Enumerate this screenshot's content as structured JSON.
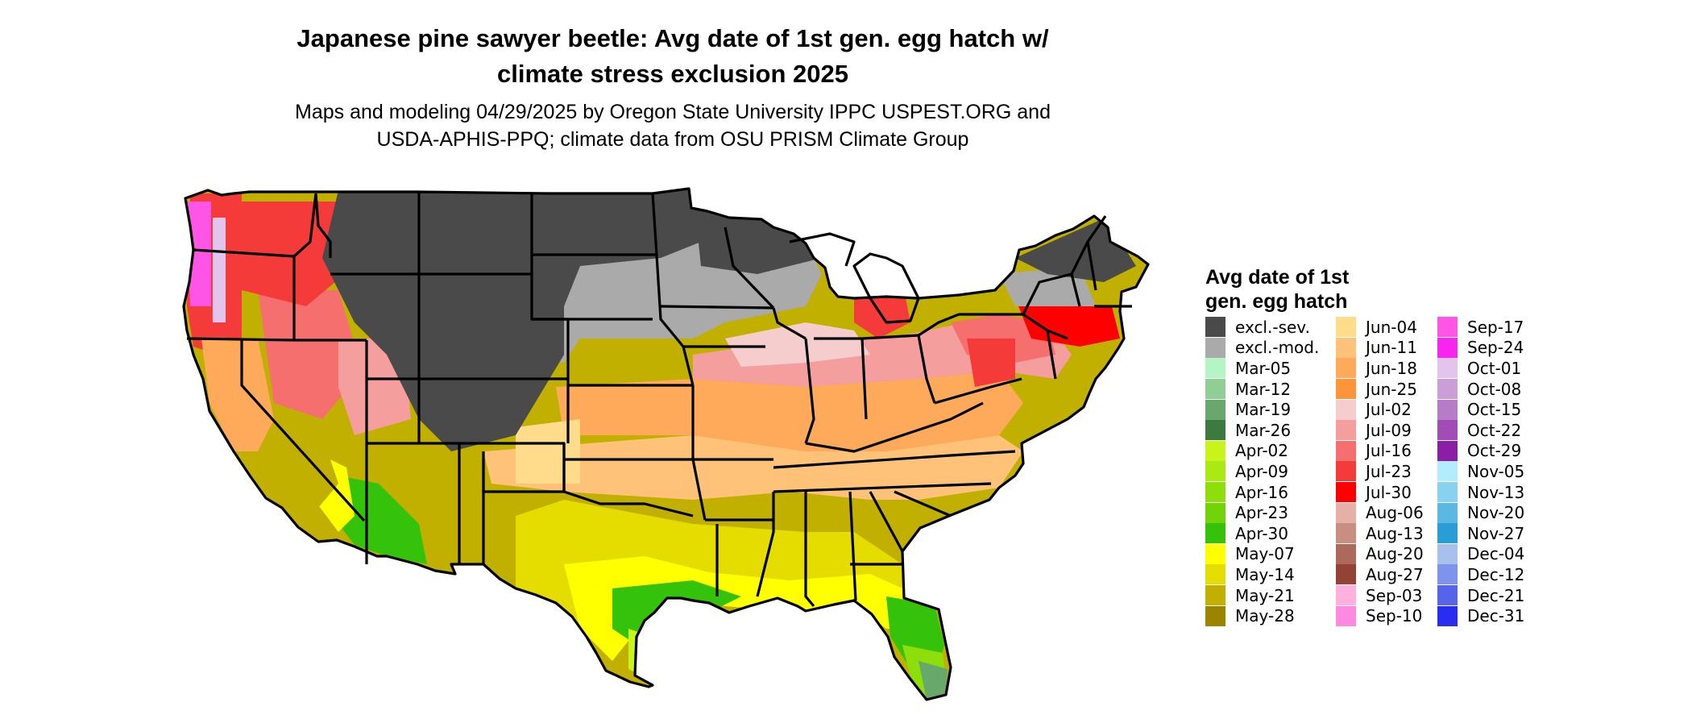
{
  "title_line1": "Japanese pine sawyer beetle: Avg date of 1st gen. egg hatch w/",
  "title_line2": "climate stress exclusion 2025",
  "subtitle_line1": "Maps and modeling 04/29/2025 by Oregon State University IPPC USPEST.ORG and",
  "subtitle_line2": "USDA-APHIS-PPQ; climate data from OSU PRISM Climate Group",
  "legend": {
    "title_line1": "Avg date of 1st",
    "title_line2": "gen. egg hatch",
    "columns": [
      [
        {
          "label": "excl.-sev.",
          "color": "#4a4a4a"
        },
        {
          "label": "excl.-mod.",
          "color": "#aaaaaa"
        },
        {
          "label": "Mar-05",
          "color": "#b5f5c5"
        },
        {
          "label": "Mar-12",
          "color": "#8fcf95"
        },
        {
          "label": "Mar-19",
          "color": "#68a86a"
        },
        {
          "label": "Mar-26",
          "color": "#3d7a40"
        },
        {
          "label": "Apr-02",
          "color": "#c7f51a"
        },
        {
          "label": "Apr-09",
          "color": "#aaea12"
        },
        {
          "label": "Apr-16",
          "color": "#8ede0c"
        },
        {
          "label": "Apr-23",
          "color": "#70d408"
        },
        {
          "label": "Apr-30",
          "color": "#34c20a"
        },
        {
          "label": "May-07",
          "color": "#ffff00"
        },
        {
          "label": "May-14",
          "color": "#e5dc00"
        },
        {
          "label": "May-21",
          "color": "#c2b000"
        },
        {
          "label": "May-28",
          "color": "#9a8400"
        }
      ],
      [
        {
          "label": "Jun-04",
          "color": "#ffdb8c"
        },
        {
          "label": "Jun-11",
          "color": "#ffc278"
        },
        {
          "label": "Jun-18",
          "color": "#ffaa5a"
        },
        {
          "label": "Jun-25",
          "color": "#ff9438"
        },
        {
          "label": "Jul-02",
          "color": "#f5cdcd"
        },
        {
          "label": "Jul-09",
          "color": "#f59e9e"
        },
        {
          "label": "Jul-16",
          "color": "#f56f6f"
        },
        {
          "label": "Jul-23",
          "color": "#f53a3a"
        },
        {
          "label": "Jul-30",
          "color": "#ff0000"
        },
        {
          "label": "Aug-06",
          "color": "#e6b0a8"
        },
        {
          "label": "Aug-13",
          "color": "#c98e82"
        },
        {
          "label": "Aug-20",
          "color": "#ad6a5c"
        },
        {
          "label": "Aug-27",
          "color": "#944236"
        },
        {
          "label": "Sep-03",
          "color": "#ffb0dc"
        },
        {
          "label": "Sep-10",
          "color": "#ff88e0"
        }
      ],
      [
        {
          "label": "Sep-17",
          "color": "#ff55e6"
        },
        {
          "label": "Sep-24",
          "color": "#f825ee"
        },
        {
          "label": "Oct-01",
          "color": "#e2c4ec"
        },
        {
          "label": "Oct-08",
          "color": "#cc9ed8"
        },
        {
          "label": "Oct-15",
          "color": "#b67cc8"
        },
        {
          "label": "Oct-22",
          "color": "#a24cb8"
        },
        {
          "label": "Oct-29",
          "color": "#8a1ea6"
        },
        {
          "label": "Nov-05",
          "color": "#b4ecff"
        },
        {
          "label": "Nov-13",
          "color": "#88d2f0"
        },
        {
          "label": "Nov-20",
          "color": "#5ab8e2"
        },
        {
          "label": "Nov-27",
          "color": "#2a9cd6"
        },
        {
          "label": "Dec-04",
          "color": "#a8c0ec"
        },
        {
          "label": "Dec-12",
          "color": "#7e94ec"
        },
        {
          "label": "Dec-21",
          "color": "#5664ec"
        },
        {
          "label": "Dec-31",
          "color": "#2a2cf0"
        }
      ]
    ]
  }
}
